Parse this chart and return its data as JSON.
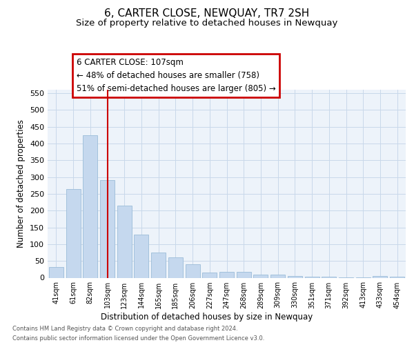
{
  "title": "6, CARTER CLOSE, NEWQUAY, TR7 2SH",
  "subtitle": "Size of property relative to detached houses in Newquay",
  "xlabel": "Distribution of detached houses by size in Newquay",
  "ylabel": "Number of detached properties",
  "footer_line1": "Contains HM Land Registry data © Crown copyright and database right 2024.",
  "footer_line2": "Contains public sector information licensed under the Open Government Licence v3.0.",
  "categories": [
    "41sqm",
    "61sqm",
    "82sqm",
    "103sqm",
    "123sqm",
    "144sqm",
    "165sqm",
    "185sqm",
    "206sqm",
    "227sqm",
    "247sqm",
    "268sqm",
    "289sqm",
    "309sqm",
    "330sqm",
    "351sqm",
    "371sqm",
    "392sqm",
    "413sqm",
    "433sqm",
    "454sqm"
  ],
  "values": [
    32,
    265,
    425,
    291,
    215,
    128,
    76,
    60,
    40,
    15,
    17,
    18,
    10,
    10,
    5,
    3,
    3,
    2,
    2,
    5,
    4
  ],
  "bar_color": "#c5d8ee",
  "bar_edge_color": "#9bbcd8",
  "vline_index": 3,
  "vline_color": "#cc0000",
  "annotation_line1": "6 CARTER CLOSE: 107sqm",
  "annotation_line2": "← 48% of detached houses are smaller (758)",
  "annotation_line3": "51% of semi-detached houses are larger (805) →",
  "annotation_box_color": "#cc0000",
  "annotation_box_bg": "#ffffff",
  "ylim": [
    0,
    560
  ],
  "yticks": [
    0,
    50,
    100,
    150,
    200,
    250,
    300,
    350,
    400,
    450,
    500,
    550
  ],
  "grid_color": "#c8d8ea",
  "bg_color": "#edf3fa",
  "title_fontsize": 11,
  "subtitle_fontsize": 9.5,
  "title_fontweight": "normal"
}
